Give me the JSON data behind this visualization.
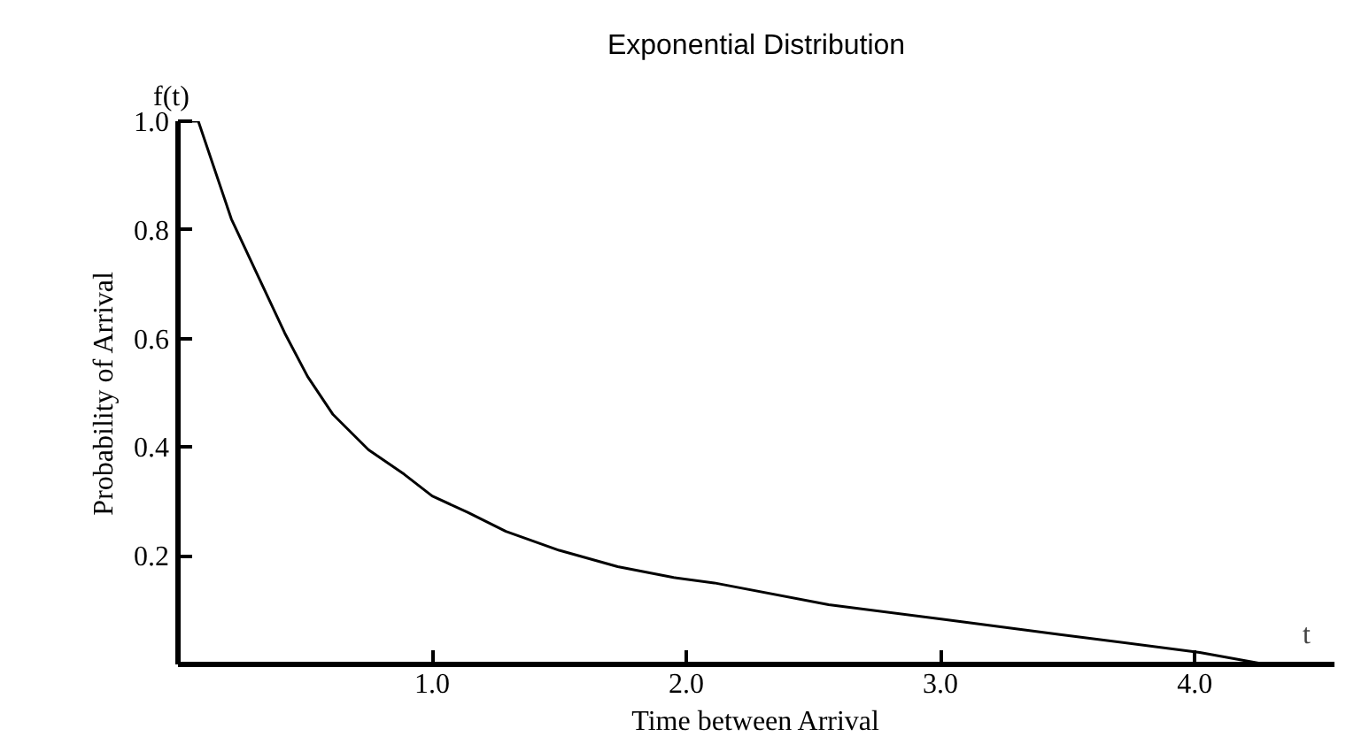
{
  "chart_data": {
    "type": "line",
    "title": "Exponential Distribution",
    "xlabel": "Time between Arrival",
    "ylabel": "Probability of Arrival",
    "annotations": [
      "f(t)",
      "t"
    ],
    "x": [
      0,
      0.08,
      0.21,
      0.32,
      0.42,
      0.51,
      0.61,
      0.75,
      0.89,
      1.0,
      1.14,
      1.29,
      1.5,
      1.73,
      1.95,
      2.11,
      2.56,
      3.01,
      3.47,
      4.02,
      4.28
    ],
    "series": [
      {
        "color": "#000000",
        "values": [
          1.0,
          1.0,
          0.82,
          0.71,
          0.61,
          0.53,
          0.46,
          0.395,
          0.35,
          0.31,
          0.28,
          0.245,
          0.21,
          0.18,
          0.16,
          0.15,
          0.11,
          0.083,
          0.055,
          0.022,
          0.0
        ]
      }
    ],
    "xlim": [
      0,
      4.55
    ],
    "ylim": [
      0,
      1.0
    ],
    "xticks": [
      {
        "value": 1,
        "label": "1.0"
      },
      {
        "value": 2,
        "label": "2.0"
      },
      {
        "value": 3,
        "label": "3.0"
      },
      {
        "value": 4,
        "label": "4.0"
      }
    ],
    "yticks": [
      0.2,
      0.4,
      0.6,
      0.8,
      {
        "value": 1,
        "label": "1.0"
      }
    ],
    "grid": false,
    "marker": "none",
    "line_style": "solid"
  }
}
